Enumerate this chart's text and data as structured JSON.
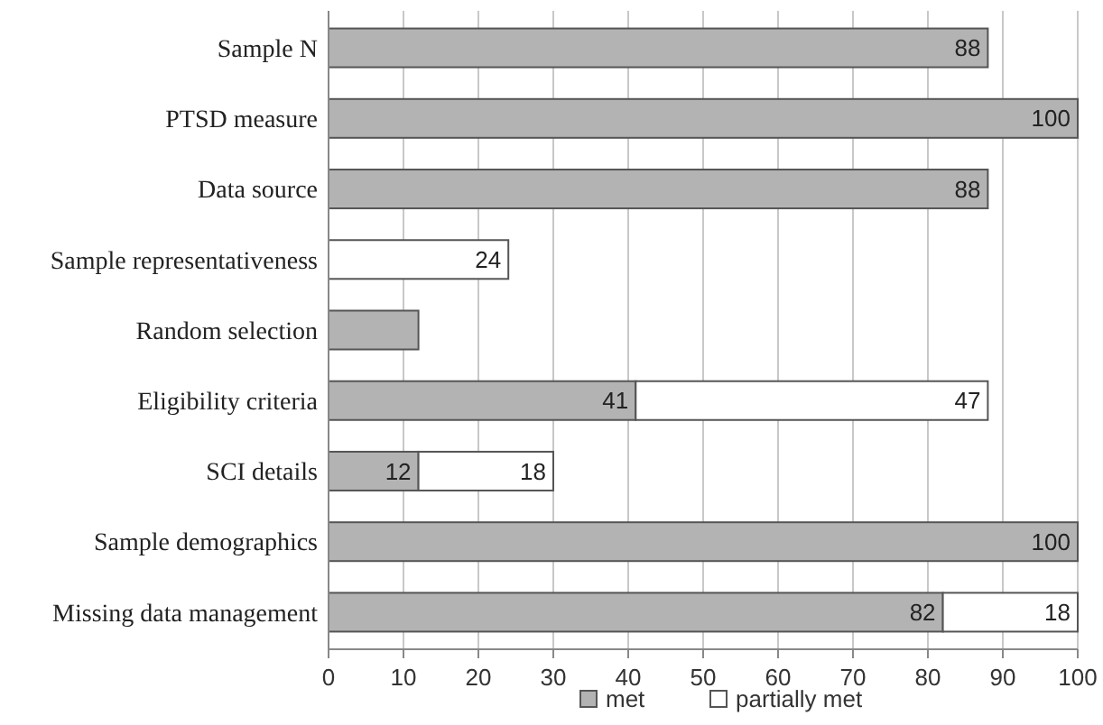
{
  "chart_data": {
    "type": "bar",
    "orientation": "horizontal",
    "stacked": true,
    "categories": [
      "Sample N",
      "PTSD measure",
      "Data source",
      "Sample representativeness",
      "Random selection",
      "Eligibility criteria",
      "SCI details",
      "Sample demographics",
      "Missing data management"
    ],
    "series": [
      {
        "name": "met",
        "color": "#b3b3b3",
        "values": [
          88,
          100,
          88,
          null,
          12,
          41,
          12,
          100,
          82
        ],
        "value_labels": [
          "88",
          "100",
          "88",
          null,
          null,
          "41",
          "12",
          "100",
          "82"
        ]
      },
      {
        "name": "partially met",
        "color": "#ffffff",
        "values": [
          null,
          null,
          null,
          24,
          null,
          47,
          18,
          null,
          18
        ],
        "value_labels": [
          null,
          null,
          null,
          "24",
          null,
          "47",
          "18",
          null,
          "18"
        ]
      }
    ],
    "xlim": [
      0,
      100
    ],
    "xticks": [
      0,
      10,
      20,
      30,
      40,
      50,
      60,
      70,
      80,
      90,
      100
    ],
    "grid": "x",
    "legend": "bottom"
  }
}
